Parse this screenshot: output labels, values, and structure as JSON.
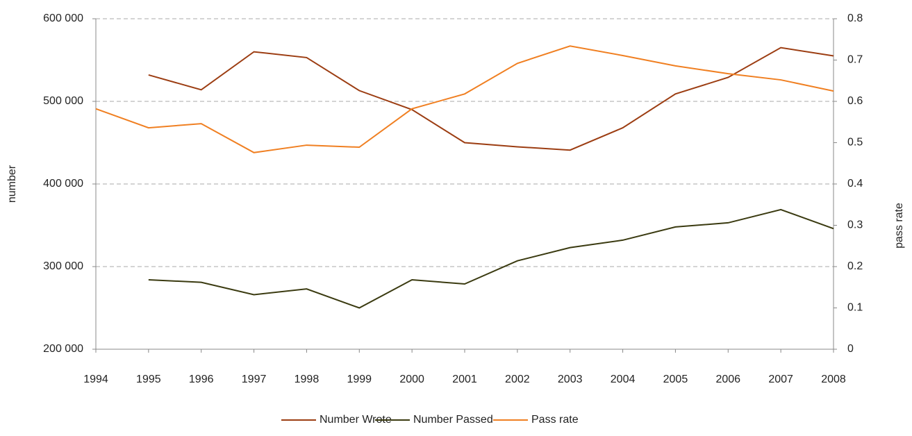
{
  "chart_data": {
    "type": "line",
    "x": [
      1994,
      1995,
      1996,
      1997,
      1998,
      1999,
      2000,
      2001,
      2002,
      2003,
      2004,
      2005,
      2006,
      2007,
      2008
    ],
    "xlim": [
      1994,
      2008
    ],
    "ylabel": "number",
    "y2label": "pass rate",
    "ylim": [
      200000,
      600000
    ],
    "yticks": [
      {
        "value": 200000,
        "label": "200 000"
      },
      {
        "value": 300000,
        "label": "300 000"
      },
      {
        "value": 400000,
        "label": "400 000"
      },
      {
        "value": 500000,
        "label": "500 000"
      },
      {
        "value": 600000,
        "label": "600 000"
      }
    ],
    "y2lim": [
      0,
      0.8
    ],
    "y2ticks": [
      0,
      0.1,
      0.2,
      0.3,
      0.4,
      0.5,
      0.6,
      0.7,
      0.8
    ],
    "grid": true,
    "legend": "bottom",
    "series": [
      {
        "name": "Number Wrote",
        "color": "#9c3d12",
        "values": [
          null,
          532000,
          514000,
          560000,
          553000,
          513000,
          490000,
          450000,
          445000,
          441000,
          468000,
          509000,
          529000,
          565000,
          555000
        ]
      },
      {
        "name": "Number Passed",
        "color": "#3a3a10",
        "values": [
          null,
          284000,
          281000,
          266000,
          273000,
          250000,
          284000,
          279000,
          307000,
          323000,
          332000,
          348000,
          353000,
          369000,
          346000
        ]
      },
      {
        "name": "Pass rate",
        "color": "#f07f21",
        "axis": "y2",
        "values": [
          0.582,
          0.536,
          0.546,
          0.476,
          0.494,
          0.489,
          0.582,
          0.618,
          0.692,
          0.734,
          0.711,
          0.686,
          0.667,
          0.652,
          0.625
        ]
      }
    ]
  }
}
